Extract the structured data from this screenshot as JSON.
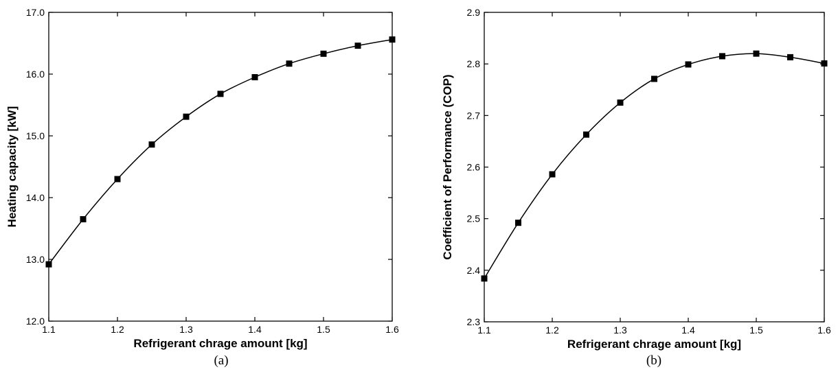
{
  "chart_data": [
    {
      "type": "line",
      "caption": "(a)",
      "xlabel": "Refrigerant chrage amount [kg]",
      "ylabel": "Heating capacity [kW]",
      "xlim": [
        1.1,
        1.6
      ],
      "ylim": [
        12.0,
        17.0
      ],
      "xticks": [
        "1.1",
        "1.2",
        "1.3",
        "1.4",
        "1.5",
        "1.6"
      ],
      "yticks": [
        "12.0",
        "13.0",
        "14.0",
        "15.0",
        "16.0",
        "17.0"
      ],
      "grid": false,
      "marker": "square",
      "series": [
        {
          "x": [
            1.1,
            1.15,
            1.2,
            1.25,
            1.3,
            1.35,
            1.4,
            1.45,
            1.5,
            1.55,
            1.6
          ],
          "values": [
            12.92,
            13.65,
            14.3,
            14.86,
            15.31,
            15.68,
            15.95,
            16.17,
            16.33,
            16.46,
            16.56
          ]
        }
      ]
    },
    {
      "type": "line",
      "caption": "(b)",
      "xlabel": "Refrigerant chrage amount [kg]",
      "ylabel": "Coefficient of Performance (COP)",
      "xlim": [
        1.1,
        1.6
      ],
      "ylim": [
        2.3,
        2.9
      ],
      "xticks": [
        "1.1",
        "1.2",
        "1.3",
        "1.4",
        "1.5",
        "1.6"
      ],
      "yticks": [
        "2.3",
        "2.4",
        "2.5",
        "2.6",
        "2.7",
        "2.8",
        "2.9"
      ],
      "grid": false,
      "marker": "square",
      "series": [
        {
          "x": [
            1.1,
            1.15,
            1.2,
            1.25,
            1.3,
            1.35,
            1.4,
            1.45,
            1.5,
            1.55,
            1.6
          ],
          "values": [
            2.384,
            2.492,
            2.586,
            2.663,
            2.725,
            2.771,
            2.799,
            2.815,
            2.82,
            2.813,
            2.801
          ]
        }
      ]
    }
  ]
}
